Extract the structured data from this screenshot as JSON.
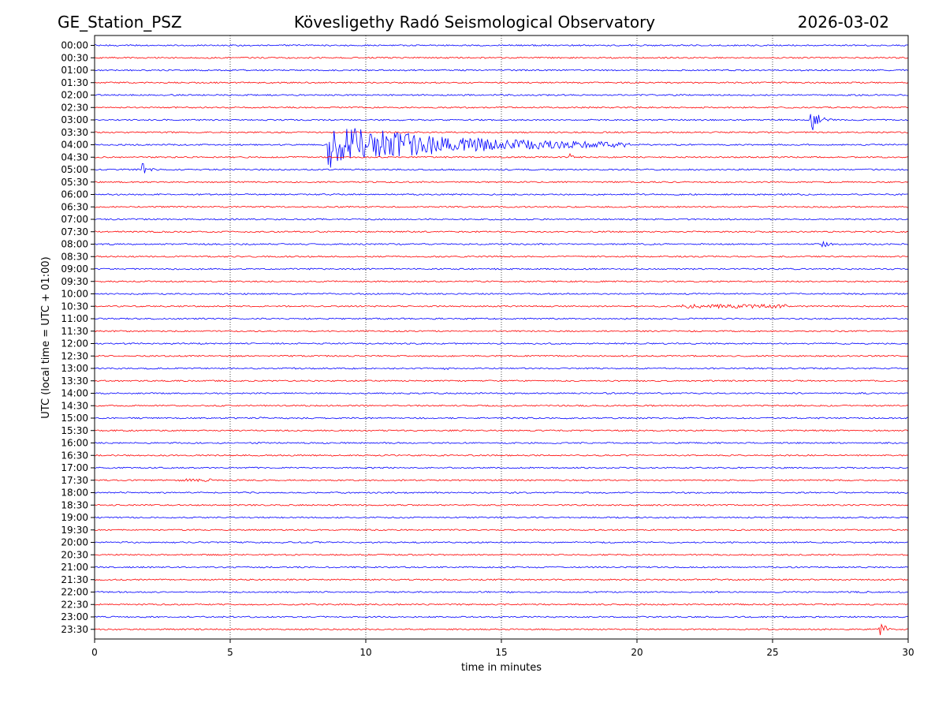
{
  "chart_data": {
    "type": "line",
    "station": "GE_Station_PSZ",
    "title": "Kövesligethy Radó Seismological Observatory",
    "date": "2026-03-02",
    "xlabel": "time in minutes",
    "ylabel": "UTC (local time = UTC + 01:00)",
    "xlim": [
      0,
      30
    ],
    "x_ticks": [
      "0",
      "5",
      "10",
      "15",
      "20",
      "25",
      "30"
    ],
    "x_tick_values": [
      0,
      5,
      10,
      15,
      20,
      25,
      30
    ],
    "grid": "vertical dotted at x ticks",
    "trace_colors": [
      "#0000ff",
      "#ff0000"
    ],
    "rows": [
      "00:00",
      "00:30",
      "01:00",
      "01:30",
      "02:00",
      "02:30",
      "03:00",
      "03:30",
      "04:00",
      "04:30",
      "05:00",
      "05:30",
      "06:00",
      "06:30",
      "07:00",
      "07:30",
      "08:00",
      "08:30",
      "09:00",
      "09:30",
      "10:00",
      "10:30",
      "11:00",
      "11:30",
      "12:00",
      "12:30",
      "13:00",
      "13:30",
      "14:00",
      "14:30",
      "15:00",
      "15:30",
      "16:00",
      "16:30",
      "17:00",
      "17:30",
      "18:00",
      "18:30",
      "19:00",
      "19:30",
      "20:00",
      "20:30",
      "21:00",
      "21:30",
      "22:00",
      "22:30",
      "23:00",
      "23:30"
    ],
    "events": [
      {
        "row": "03:00",
        "start_min": 26.4,
        "end_min": 27.6,
        "peak": 1.0,
        "kind": "local"
      },
      {
        "row": "04:00",
        "start_min": 8.6,
        "end_min": 20.0,
        "peak": 1.0,
        "kind": "teleseismic"
      },
      {
        "row": "04:00",
        "start_min": 12.3,
        "end_min": 14.5,
        "peak": 0.6,
        "kind": "phase"
      },
      {
        "row": "04:30",
        "start_min": 17.5,
        "end_min": 18.3,
        "peak": 0.3,
        "kind": "local"
      },
      {
        "row": "05:00",
        "start_min": 1.75,
        "end_min": 2.6,
        "peak": 0.7,
        "kind": "local"
      },
      {
        "row": "08:00",
        "start_min": 26.8,
        "end_min": 28.0,
        "peak": 0.3,
        "kind": "local"
      },
      {
        "row": "10:30",
        "start_min": 21.6,
        "end_min": 25.5,
        "peak": 0.4,
        "kind": "noise"
      },
      {
        "row": "13:00",
        "start_min": 12.9,
        "end_min": 13.1,
        "peak": 0.4,
        "kind": "spike"
      },
      {
        "row": "15:00",
        "start_min": 6.1,
        "end_min": 6.4,
        "peak": 0.3,
        "kind": "spike"
      },
      {
        "row": "17:30",
        "start_min": 3.1,
        "end_min": 4.3,
        "peak": 0.3,
        "kind": "noise"
      },
      {
        "row": "23:30",
        "start_min": 28.9,
        "end_min": 30.0,
        "peak": 0.6,
        "kind": "local"
      }
    ]
  }
}
